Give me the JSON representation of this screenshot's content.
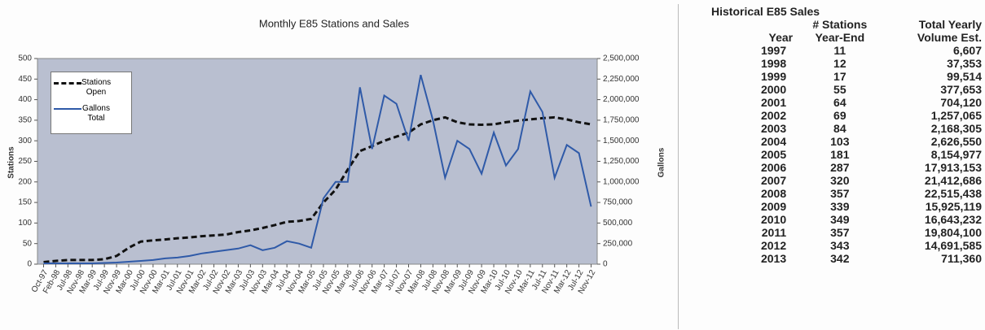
{
  "chart_data": {
    "type": "line",
    "title": "Monthly E85 Stations and Sales",
    "y_label": "Stations",
    "y2_label": "Gallons",
    "categories": [
      "Oct-97",
      "Feb-98",
      "Jul-98",
      "Nov-98",
      "Mar-99",
      "Jul-99",
      "Nov-99",
      "Mar-00",
      "Jul-00",
      "Nov-00",
      "Mar-01",
      "Jul-01",
      "Nov-01",
      "Mar-02",
      "Jul-02",
      "Nov-02",
      "Mar-03",
      "Jul-03",
      "Nov-03",
      "Mar-04",
      "Jul-04",
      "Nov-04",
      "Mar-05",
      "Jul-05",
      "Nov-05",
      "Mar-06",
      "Jul-06",
      "Nov-06",
      "Mar-07",
      "Jul-07",
      "Nov-07",
      "Mar-08",
      "Jul-08",
      "Nov-08",
      "Mar-09",
      "Jul-09",
      "Nov-09",
      "Mar-10",
      "Jul-10",
      "Nov-10",
      "Mar-11",
      "Jul-11",
      "Nov-11",
      "Mar-12",
      "Jul-12",
      "Nov-12"
    ],
    "series": [
      {
        "name": "Stations Open",
        "color": "#111111",
        "dashed": true,
        "values": [
          5,
          8,
          10,
          10,
          10,
          12,
          20,
          40,
          55,
          58,
          60,
          63,
          65,
          68,
          70,
          72,
          78,
          82,
          88,
          95,
          103,
          105,
          110,
          150,
          181,
          230,
          275,
          287,
          300,
          310,
          320,
          340,
          350,
          357,
          345,
          340,
          339,
          340,
          345,
          349,
          352,
          355,
          357,
          352,
          345,
          340
        ]
      },
      {
        "name": "Gallons Total",
        "color": "#2f5aa8",
        "axis": "y2",
        "values": [
          10000,
          10000,
          10000,
          10000,
          10000,
          15000,
          20000,
          30000,
          40000,
          50000,
          70000,
          80000,
          100000,
          130000,
          150000,
          170000,
          190000,
          230000,
          170000,
          200000,
          280000,
          250000,
          200000,
          800000,
          1000000,
          1000000,
          2150000,
          1400000,
          2050000,
          1950000,
          1500000,
          2300000,
          1750000,
          1050000,
          1500000,
          1400000,
          1100000,
          1600000,
          1200000,
          1400000,
          2100000,
          1850000,
          1050000,
          1450000,
          1350000,
          700000
        ]
      }
    ],
    "ylim": [
      0,
      500
    ],
    "yticks": [
      0,
      50,
      100,
      150,
      200,
      250,
      300,
      350,
      400,
      450,
      500
    ],
    "y2lim": [
      0,
      2500000
    ],
    "y2ticks": [
      0,
      {
        "value": 250000,
        "label": "250,000"
      },
      {
        "value": 500000,
        "label": "500,000"
      },
      {
        "value": 750000,
        "label": "750,000"
      },
      {
        "value": 1000000,
        "label": "1,000,000"
      },
      {
        "value": 1250000,
        "label": "1,250,000"
      },
      {
        "value": 1500000,
        "label": "1,500,000"
      },
      {
        "value": 1750000,
        "label": "1,750,000"
      },
      {
        "value": 2000000,
        "label": "2,000,000"
      },
      {
        "value": 2250000,
        "label": "2,250,000"
      },
      {
        "value": 2500000,
        "label": "2,500,000"
      }
    ],
    "legend": "top-left"
  },
  "table": {
    "title": "Historical E85 Sales",
    "header": [
      "Year",
      "# Stations Year-End",
      "Total Yearly Volume Est."
    ],
    "rows": [
      [
        "1997",
        "11",
        "6,607"
      ],
      [
        "1998",
        "12",
        "37,353"
      ],
      [
        "1999",
        "17",
        "99,514"
      ],
      [
        "2000",
        "55",
        "377,653"
      ],
      [
        "2001",
        "64",
        "704,120"
      ],
      [
        "2002",
        "69",
        "1,257,065"
      ],
      [
        "2003",
        "84",
        "2,168,305"
      ],
      [
        "2004",
        "103",
        "2,626,550"
      ],
      [
        "2005",
        "181",
        "8,154,977"
      ],
      [
        "2006",
        "287",
        "17,913,153"
      ],
      [
        "2007",
        "320",
        "21,412,686"
      ],
      [
        "2008",
        "357",
        "22,515,438"
      ],
      [
        "2009",
        "339",
        "15,925,119"
      ],
      [
        "2010",
        "349",
        "16,643,232"
      ],
      [
        "2011",
        "357",
        "19,804,100"
      ],
      [
        "2012",
        "343",
        "14,691,585"
      ],
      [
        "2013",
        "342",
        "711,360"
      ]
    ]
  }
}
